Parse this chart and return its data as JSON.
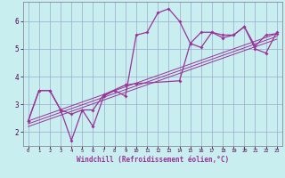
{
  "xlabel": "Windchill (Refroidissement éolien,°C)",
  "bg_color": "#c8eef0",
  "line_color": "#993399",
  "grid_color": "#99aacc",
  "xlim": [
    -0.5,
    23.5
  ],
  "ylim": [
    1.5,
    6.7
  ],
  "xticks": [
    0,
    1,
    2,
    3,
    4,
    5,
    6,
    7,
    8,
    9,
    10,
    11,
    12,
    13,
    14,
    15,
    16,
    17,
    18,
    19,
    20,
    21,
    22,
    23
  ],
  "yticks": [
    2,
    3,
    4,
    5,
    6
  ],
  "s1x": [
    0,
    1,
    2,
    3,
    4,
    5,
    6,
    7,
    8,
    9,
    10,
    11,
    12,
    13,
    14,
    15,
    16,
    17,
    18,
    19,
    20,
    21,
    22,
    23
  ],
  "s1y": [
    2.4,
    3.5,
    3.5,
    2.8,
    1.7,
    2.8,
    2.2,
    3.3,
    3.5,
    3.3,
    5.5,
    5.6,
    6.3,
    6.45,
    6.0,
    5.2,
    5.6,
    5.6,
    5.5,
    5.5,
    5.8,
    5.0,
    4.85,
    5.6
  ],
  "s2x": [
    0,
    1,
    2,
    3,
    4,
    5,
    6,
    7,
    9,
    10,
    14,
    15,
    16,
    17,
    18,
    19,
    20,
    21,
    22,
    23
  ],
  "s2y": [
    2.4,
    3.5,
    3.5,
    2.8,
    2.65,
    2.8,
    2.8,
    3.35,
    3.7,
    3.75,
    3.85,
    5.2,
    5.05,
    5.6,
    5.4,
    5.5,
    5.8,
    5.1,
    5.5,
    5.55
  ],
  "reg_lines": [
    [
      [
        0,
        23
      ],
      [
        2.2,
        5.35
      ]
    ],
    [
      [
        0,
        23
      ],
      [
        2.3,
        5.45
      ]
    ],
    [
      [
        0,
        23
      ],
      [
        2.4,
        5.55
      ]
    ]
  ]
}
